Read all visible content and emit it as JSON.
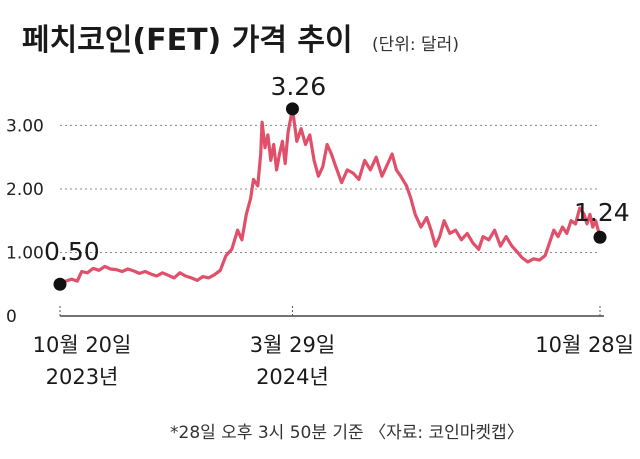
{
  "title": "페치코인(FET) 가격 추이",
  "unit_note": "(단위: 달러)",
  "footnote": "*28일 오후 3시 50분 기준 〈자료: 코인마켓캡〉",
  "colors": {
    "line": "#e0506a",
    "marker": "#111111",
    "grid": "#888888"
  },
  "chart_data": {
    "type": "line",
    "title": "페치코인(FET) 가격 추이",
    "unit": "달러",
    "y_ticks": [
      "0",
      "1.00",
      "2.00",
      "3.00"
    ],
    "ylim": [
      0,
      3.4
    ],
    "grid": true,
    "x_labels": [
      {
        "lines": [
          "10월 20일",
          "2023년"
        ],
        "x": "2023-10-20"
      },
      {
        "lines": [
          "3월 29일",
          "2024년"
        ],
        "x": "2024-03-29"
      },
      {
        "lines": [
          "10월 28일"
        ],
        "x": "2024-10-28"
      }
    ],
    "xlim": [
      "2023-10-20",
      "2024-10-28"
    ],
    "highlights": [
      {
        "x": "2023-10-20",
        "y": 0.5,
        "label": "0.50"
      },
      {
        "x": "2024-03-29",
        "y": 3.26,
        "label": "3.26"
      },
      {
        "x": "2024-10-28",
        "y": 1.24,
        "label": "1.24"
      }
    ],
    "series": [
      {
        "points": [
          [
            "2023-10-20",
            0.5
          ],
          [
            "2023-10-24",
            0.55
          ],
          [
            "2023-10-28",
            0.58
          ],
          [
            "2023-11-01",
            0.55
          ],
          [
            "2023-11-04",
            0.7
          ],
          [
            "2023-11-08",
            0.68
          ],
          [
            "2023-11-12",
            0.75
          ],
          [
            "2023-11-16",
            0.72
          ],
          [
            "2023-11-20",
            0.78
          ],
          [
            "2023-11-24",
            0.74
          ],
          [
            "2023-11-28",
            0.73
          ],
          [
            "2023-12-02",
            0.7
          ],
          [
            "2023-12-06",
            0.74
          ],
          [
            "2023-12-10",
            0.71
          ],
          [
            "2023-12-14",
            0.67
          ],
          [
            "2023-12-18",
            0.7
          ],
          [
            "2023-12-22",
            0.66
          ],
          [
            "2023-12-26",
            0.63
          ],
          [
            "2023-12-30",
            0.68
          ],
          [
            "2024-01-03",
            0.64
          ],
          [
            "2024-01-07",
            0.6
          ],
          [
            "2024-01-11",
            0.68
          ],
          [
            "2024-01-15",
            0.63
          ],
          [
            "2024-01-19",
            0.6
          ],
          [
            "2024-01-23",
            0.56
          ],
          [
            "2024-01-27",
            0.62
          ],
          [
            "2024-01-31",
            0.6
          ],
          [
            "2024-02-04",
            0.65
          ],
          [
            "2024-02-08",
            0.72
          ],
          [
            "2024-02-12",
            0.95
          ],
          [
            "2024-02-16",
            1.05
          ],
          [
            "2024-02-20",
            1.35
          ],
          [
            "2024-02-23",
            1.2
          ],
          [
            "2024-02-26",
            1.6
          ],
          [
            "2024-02-29",
            1.85
          ],
          [
            "2024-03-02",
            2.15
          ],
          [
            "2024-03-05",
            2.05
          ],
          [
            "2024-03-07",
            2.55
          ],
          [
            "2024-03-08",
            3.05
          ],
          [
            "2024-03-10",
            2.65
          ],
          [
            "2024-03-12",
            2.85
          ],
          [
            "2024-03-14",
            2.45
          ],
          [
            "2024-03-16",
            2.7
          ],
          [
            "2024-03-18",
            2.3
          ],
          [
            "2024-03-20",
            2.55
          ],
          [
            "2024-03-22",
            2.75
          ],
          [
            "2024-03-24",
            2.4
          ],
          [
            "2024-03-26",
            2.9
          ],
          [
            "2024-03-29",
            3.26
          ],
          [
            "2024-04-01",
            2.75
          ],
          [
            "2024-04-04",
            2.95
          ],
          [
            "2024-04-07",
            2.7
          ],
          [
            "2024-04-10",
            2.85
          ],
          [
            "2024-04-13",
            2.45
          ],
          [
            "2024-04-16",
            2.2
          ],
          [
            "2024-04-19",
            2.35
          ],
          [
            "2024-04-22",
            2.7
          ],
          [
            "2024-04-25",
            2.55
          ],
          [
            "2024-04-28",
            2.35
          ],
          [
            "2024-05-02",
            2.1
          ],
          [
            "2024-05-06",
            2.3
          ],
          [
            "2024-05-10",
            2.25
          ],
          [
            "2024-05-14",
            2.15
          ],
          [
            "2024-05-18",
            2.45
          ],
          [
            "2024-05-22",
            2.3
          ],
          [
            "2024-05-26",
            2.5
          ],
          [
            "2024-05-30",
            2.2
          ],
          [
            "2024-06-03",
            2.4
          ],
          [
            "2024-06-06",
            2.55
          ],
          [
            "2024-06-09",
            2.3
          ],
          [
            "2024-06-12",
            2.2
          ],
          [
            "2024-06-16",
            2.05
          ],
          [
            "2024-06-19",
            1.85
          ],
          [
            "2024-06-22",
            1.6
          ],
          [
            "2024-06-26",
            1.4
          ],
          [
            "2024-06-30",
            1.55
          ],
          [
            "2024-07-03",
            1.35
          ],
          [
            "2024-07-06",
            1.1
          ],
          [
            "2024-07-09",
            1.25
          ],
          [
            "2024-07-12",
            1.5
          ],
          [
            "2024-07-16",
            1.3
          ],
          [
            "2024-07-20",
            1.35
          ],
          [
            "2024-07-24",
            1.2
          ],
          [
            "2024-07-28",
            1.3
          ],
          [
            "2024-08-01",
            1.15
          ],
          [
            "2024-08-05",
            1.05
          ],
          [
            "2024-08-08",
            1.25
          ],
          [
            "2024-08-12",
            1.2
          ],
          [
            "2024-08-16",
            1.35
          ],
          [
            "2024-08-20",
            1.1
          ],
          [
            "2024-08-24",
            1.25
          ],
          [
            "2024-08-28",
            1.1
          ],
          [
            "2024-09-01",
            1.0
          ],
          [
            "2024-09-04",
            0.92
          ],
          [
            "2024-09-08",
            0.85
          ],
          [
            "2024-09-12",
            0.9
          ],
          [
            "2024-09-16",
            0.88
          ],
          [
            "2024-09-20",
            0.95
          ],
          [
            "2024-09-23",
            1.15
          ],
          [
            "2024-09-26",
            1.35
          ],
          [
            "2024-09-29",
            1.25
          ],
          [
            "2024-10-02",
            1.4
          ],
          [
            "2024-10-05",
            1.3
          ],
          [
            "2024-10-08",
            1.5
          ],
          [
            "2024-10-11",
            1.45
          ],
          [
            "2024-10-14",
            1.7
          ],
          [
            "2024-10-17",
            1.6
          ],
          [
            "2024-10-19",
            1.45
          ],
          [
            "2024-10-21",
            1.6
          ],
          [
            "2024-10-23",
            1.4
          ],
          [
            "2024-10-25",
            1.5
          ],
          [
            "2024-10-28",
            1.24
          ]
        ]
      }
    ]
  }
}
